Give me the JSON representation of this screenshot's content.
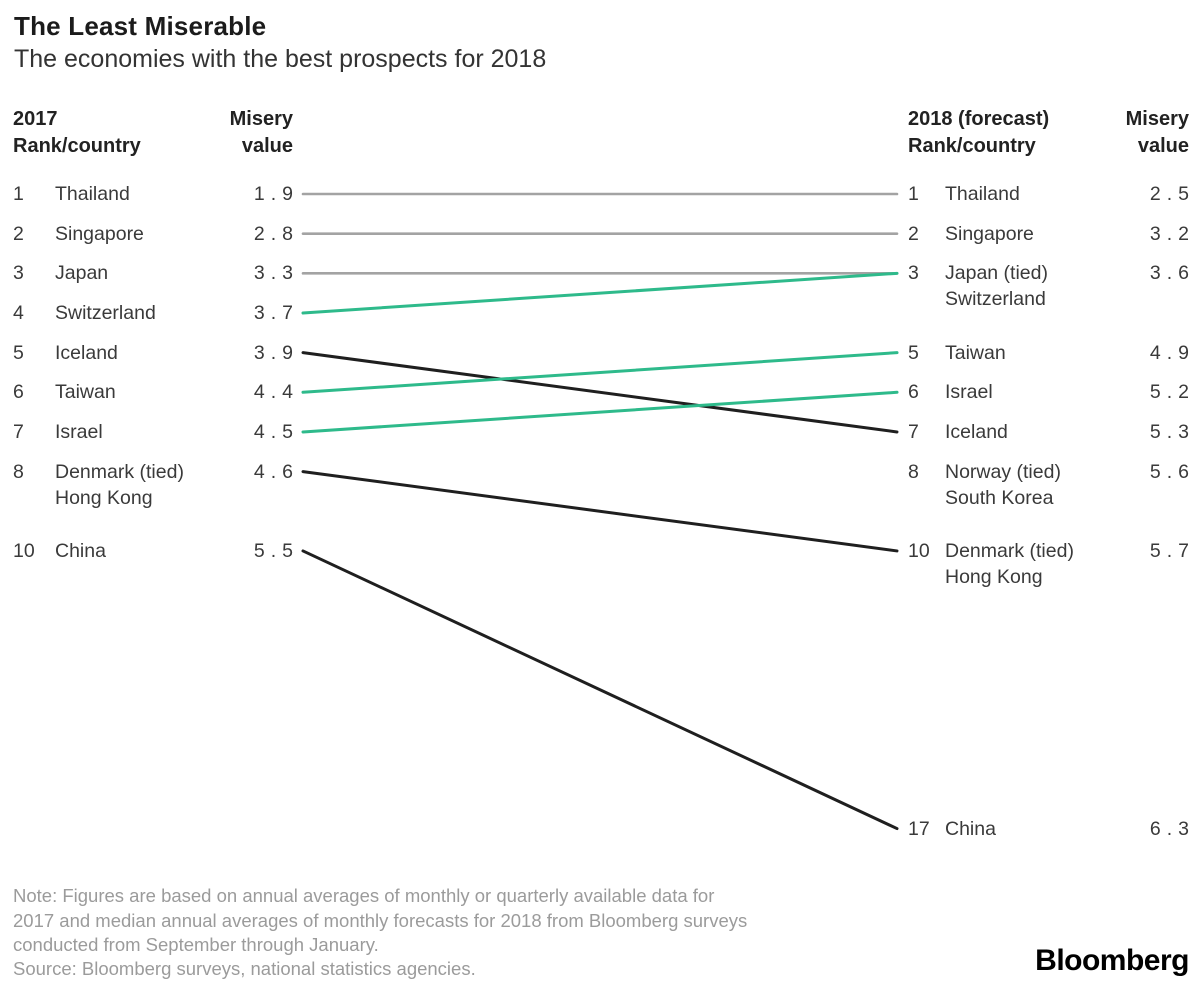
{
  "title": "The Least Miserable",
  "subtitle": "The economies with the best prospects for 2018",
  "left_table": {
    "rank_header": "2017\nRank/country",
    "value_header": "Misery\nvalue",
    "rows": [
      {
        "rank": "1",
        "country": "Thailand",
        "value": "1.9"
      },
      {
        "rank": "2",
        "country": "Singapore",
        "value": "2.8"
      },
      {
        "rank": "3",
        "country": "Japan",
        "value": "3.3"
      },
      {
        "rank": "4",
        "country": "Switzerland",
        "value": "3.7"
      },
      {
        "rank": "5",
        "country": "Iceland",
        "value": "3.9"
      },
      {
        "rank": "6",
        "country": "Taiwan",
        "value": "4.4"
      },
      {
        "rank": "7",
        "country": "Israel",
        "value": "4.5"
      },
      {
        "rank": "8",
        "country": "Denmark (tied)\nHong Kong",
        "value": "4.6"
      },
      {
        "rank": "10",
        "country": "China",
        "value": "5.5"
      }
    ]
  },
  "right_table": {
    "rank_header": "2018 (forecast)\nRank/country",
    "value_header": "Misery\nvalue",
    "rows": [
      {
        "rank": "1",
        "country": "Thailand",
        "value": "2.5"
      },
      {
        "rank": "2",
        "country": "Singapore",
        "value": "3.2"
      },
      {
        "rank": "3",
        "country": "Japan (tied)\nSwitzerland",
        "value": "3.6"
      },
      {
        "rank": "5",
        "country": "Taiwan",
        "value": "4.9"
      },
      {
        "rank": "6",
        "country": "Israel",
        "value": "5.2"
      },
      {
        "rank": "7",
        "country": "Iceland",
        "value": "5.3"
      },
      {
        "rank": "8",
        "country": "Norway (tied)\nSouth Korea",
        "value": "5.6"
      },
      {
        "rank": "10",
        "country": "Denmark (tied)\nHong Kong",
        "value": "5.7"
      },
      {
        "rank": "17",
        "country": "China",
        "value": "6.3"
      }
    ]
  },
  "slope_lines": [
    {
      "country": "Thailand",
      "from_rank": 1,
      "to_rank": 1,
      "color": "gray"
    },
    {
      "country": "Singapore",
      "from_rank": 2,
      "to_rank": 2,
      "color": "gray"
    },
    {
      "country": "Japan",
      "from_rank": 3,
      "to_rank": 3,
      "color": "gray"
    },
    {
      "country": "Switzerland",
      "from_rank": 4,
      "to_rank": 3,
      "color": "green"
    },
    {
      "country": "Iceland",
      "from_rank": 5,
      "to_rank": 7,
      "color": "black"
    },
    {
      "country": "Taiwan",
      "from_rank": 6,
      "to_rank": 5,
      "color": "green"
    },
    {
      "country": "Israel",
      "from_rank": 7,
      "to_rank": 6,
      "color": "green"
    },
    {
      "country": "Denmark-Hong-Kong",
      "from_rank": 8,
      "to_rank": 10,
      "color": "black"
    },
    {
      "country": "China",
      "from_rank": 10,
      "to_rank": 17,
      "color": "black"
    }
  ],
  "colors": {
    "gray": "#a3a3a3",
    "black": "#1f1f1f",
    "green": "#2eba8b"
  },
  "note": "Note: Figures are based on annual averages of monthly or quarterly available data for\n2017 and median annual averages of monthly forecasts for 2018 from Bloomberg surveys\nconducted from September through January.",
  "source": "Source: Bloomberg surveys, national statistics agencies.",
  "logo": "Bloomberg",
  "chart_data": {
    "type": "line",
    "subtype": "slopegraph",
    "title": "The Least Miserable",
    "subtitle": "The economies with the best prospects for 2018",
    "x": [
      "2017",
      "2018 (forecast)"
    ],
    "value_label": "Misery value",
    "series": [
      {
        "name": "Thailand",
        "rank_2017": 1,
        "rank_2018": 1,
        "values": [
          1.9,
          2.5
        ],
        "line_color": "gray"
      },
      {
        "name": "Singapore",
        "rank_2017": 2,
        "rank_2018": 2,
        "values": [
          2.8,
          3.2
        ],
        "line_color": "gray"
      },
      {
        "name": "Japan",
        "rank_2017": 3,
        "rank_2018": 3,
        "values": [
          3.3,
          3.6
        ],
        "line_color": "gray",
        "note_2018": "tied with Switzerland"
      },
      {
        "name": "Switzerland",
        "rank_2017": 4,
        "rank_2018": 3,
        "values": [
          3.7,
          3.6
        ],
        "line_color": "green",
        "note_2018": "tied with Japan"
      },
      {
        "name": "Iceland",
        "rank_2017": 5,
        "rank_2018": 7,
        "values": [
          3.9,
          5.3
        ],
        "line_color": "black"
      },
      {
        "name": "Taiwan",
        "rank_2017": 6,
        "rank_2018": 5,
        "values": [
          4.4,
          4.9
        ],
        "line_color": "green"
      },
      {
        "name": "Israel",
        "rank_2017": 7,
        "rank_2018": 6,
        "values": [
          4.5,
          5.2
        ],
        "line_color": "green"
      },
      {
        "name": "Denmark",
        "rank_2017": 8,
        "rank_2018": 10,
        "values": [
          4.6,
          5.7
        ],
        "line_color": "black",
        "note_2017": "tied with Hong Kong",
        "note_2018": "tied with Hong Kong"
      },
      {
        "name": "Hong Kong",
        "rank_2017": 8,
        "rank_2018": 10,
        "values": [
          4.6,
          5.7
        ],
        "line_color": "black",
        "note_2017": "tied with Denmark",
        "note_2018": "tied with Denmark"
      },
      {
        "name": "Norway",
        "rank_2017": null,
        "rank_2018": 8,
        "values": [
          null,
          5.6
        ],
        "line_color": null,
        "note_2018": "tied with South Korea"
      },
      {
        "name": "South Korea",
        "rank_2017": null,
        "rank_2018": 8,
        "values": [
          null,
          5.6
        ],
        "line_color": null,
        "note_2018": "tied with Norway"
      },
      {
        "name": "China",
        "rank_2017": 10,
        "rank_2018": 17,
        "values": [
          5.5,
          6.3
        ],
        "line_color": "black"
      }
    ],
    "legend": "none",
    "grid": false
  }
}
